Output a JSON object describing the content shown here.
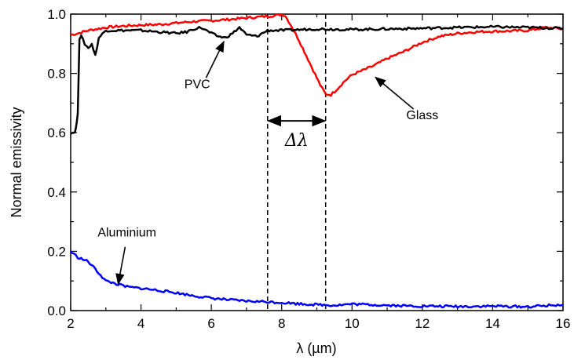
{
  "chart_data": {
    "type": "line",
    "xlabel": "λ (µm)",
    "ylabel": "Normal emissivity",
    "xlim": [
      2,
      16
    ],
    "ylim": [
      0,
      1.0
    ],
    "x_ticks": [
      "2",
      "4",
      "6",
      "8",
      "10",
      "12",
      "14",
      "16"
    ],
    "y_ticks": [
      "0.0",
      "0.2",
      "0.4",
      "0.6",
      "0.8",
      "1.0"
    ],
    "grid": false,
    "series": [
      {
        "name": "Glass",
        "color": "#ff0000",
        "points": [
          [
            2.0,
            0.93
          ],
          [
            2.2,
            0.935
          ],
          [
            2.5,
            0.945
          ],
          [
            3.0,
            0.955
          ],
          [
            3.5,
            0.96
          ],
          [
            4.0,
            0.963
          ],
          [
            4.5,
            0.965
          ],
          [
            5.0,
            0.97
          ],
          [
            5.5,
            0.975
          ],
          [
            6.0,
            0.978
          ],
          [
            6.5,
            0.982
          ],
          [
            7.0,
            0.987
          ],
          [
            7.5,
            0.992
          ],
          [
            7.8,
            0.995
          ],
          [
            8.0,
            0.999
          ],
          [
            8.1,
            0.995
          ],
          [
            8.3,
            0.955
          ],
          [
            8.5,
            0.91
          ],
          [
            8.7,
            0.86
          ],
          [
            8.9,
            0.81
          ],
          [
            9.1,
            0.76
          ],
          [
            9.25,
            0.73
          ],
          [
            9.4,
            0.728
          ],
          [
            9.6,
            0.75
          ],
          [
            9.8,
            0.775
          ],
          [
            10.0,
            0.795
          ],
          [
            10.3,
            0.81
          ],
          [
            10.6,
            0.825
          ],
          [
            11.0,
            0.85
          ],
          [
            11.5,
            0.875
          ],
          [
            12.0,
            0.905
          ],
          [
            12.5,
            0.925
          ],
          [
            13.0,
            0.935
          ],
          [
            13.5,
            0.94
          ],
          [
            14.0,
            0.942
          ],
          [
            14.5,
            0.943
          ],
          [
            15.0,
            0.945
          ],
          [
            15.5,
            0.955
          ],
          [
            16.0,
            0.95
          ]
        ]
      },
      {
        "name": "PVC",
        "color": "#000000",
        "points": [
          [
            2.0,
            0.6
          ],
          [
            2.1,
            0.6
          ],
          [
            2.15,
            0.615
          ],
          [
            2.2,
            0.66
          ],
          [
            2.25,
            0.92
          ],
          [
            2.3,
            0.925
          ],
          [
            2.4,
            0.9
          ],
          [
            2.5,
            0.885
          ],
          [
            2.6,
            0.9
          ],
          [
            2.7,
            0.86
          ],
          [
            2.8,
            0.92
          ],
          [
            3.0,
            0.945
          ],
          [
            3.5,
            0.945
          ],
          [
            4.0,
            0.945
          ],
          [
            4.5,
            0.94
          ],
          [
            5.0,
            0.935
          ],
          [
            5.3,
            0.94
          ],
          [
            5.5,
            0.95
          ],
          [
            5.7,
            0.955
          ],
          [
            6.0,
            0.935
          ],
          [
            6.2,
            0.925
          ],
          [
            6.4,
            0.92
          ],
          [
            6.6,
            0.935
          ],
          [
            6.8,
            0.955
          ],
          [
            7.0,
            0.93
          ],
          [
            7.3,
            0.925
          ],
          [
            7.6,
            0.945
          ],
          [
            8.0,
            0.945
          ],
          [
            9.0,
            0.95
          ],
          [
            10.0,
            0.948
          ],
          [
            11.0,
            0.95
          ],
          [
            12.0,
            0.952
          ],
          [
            13.0,
            0.955
          ],
          [
            14.0,
            0.957
          ],
          [
            15.0,
            0.955
          ],
          [
            16.0,
            0.952
          ]
        ]
      },
      {
        "name": "Aluminium",
        "color": "#0000ff",
        "points": [
          [
            2.0,
            0.2
          ],
          [
            2.2,
            0.18
          ],
          [
            2.5,
            0.165
          ],
          [
            2.7,
            0.14
          ],
          [
            3.0,
            0.1
          ],
          [
            3.3,
            0.09
          ],
          [
            3.6,
            0.08
          ],
          [
            4.0,
            0.075
          ],
          [
            4.5,
            0.068
          ],
          [
            5.0,
            0.06
          ],
          [
            5.5,
            0.05
          ],
          [
            6.0,
            0.042
          ],
          [
            6.5,
            0.036
          ],
          [
            7.0,
            0.032
          ],
          [
            7.5,
            0.03
          ],
          [
            8.0,
            0.027
          ],
          [
            8.5,
            0.023
          ],
          [
            9.0,
            0.02
          ],
          [
            9.5,
            0.018
          ],
          [
            10.0,
            0.022
          ],
          [
            10.5,
            0.02
          ],
          [
            11.0,
            0.018
          ],
          [
            11.5,
            0.016
          ],
          [
            12.0,
            0.015
          ],
          [
            13.0,
            0.014
          ],
          [
            14.0,
            0.015
          ],
          [
            15.0,
            0.013
          ],
          [
            16.0,
            0.02
          ]
        ]
      }
    ],
    "annotations": [
      {
        "text": "PVC",
        "x": 6.4,
        "y": 0.918
      },
      {
        "text": "Glass",
        "x": 10.6,
        "y": 0.795
      },
      {
        "text": "Aluminium",
        "x": 3.35,
        "y": 0.09
      },
      {
        "text": "Δλ",
        "x1": 7.6,
        "x2": 9.25,
        "y": 0.64
      }
    ],
    "vlines": [
      7.6,
      9.25
    ]
  }
}
